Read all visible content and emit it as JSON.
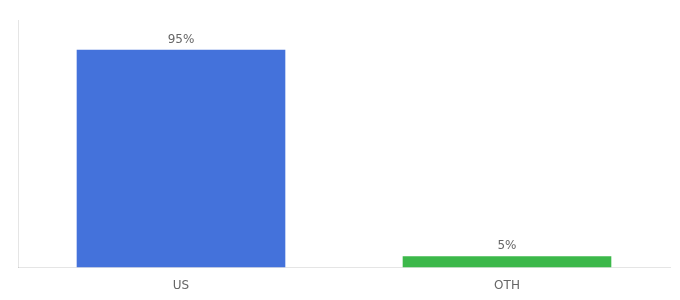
{
  "chart_data": {
    "type": "bar",
    "categories": [
      "US",
      "OTH"
    ],
    "values": [
      95,
      5
    ],
    "colors": [
      "#4472db",
      "#3cb84a"
    ],
    "value_labels": [
      "95%",
      "5%"
    ],
    "data_labels": true,
    "ylim": [
      0,
      108
    ],
    "grid": false,
    "tick_labels": "x"
  }
}
